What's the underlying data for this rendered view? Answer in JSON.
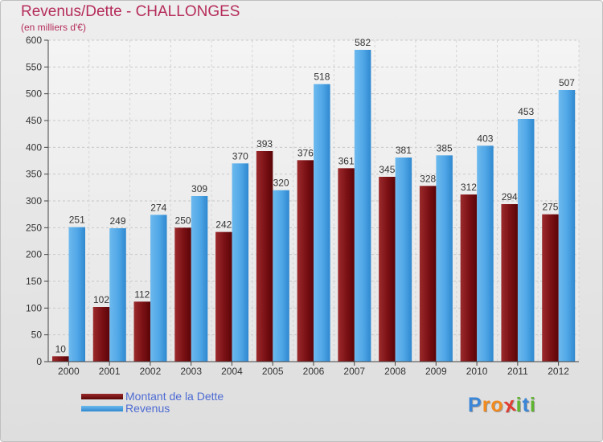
{
  "title": "Revenus/Dette - CHALLONGES",
  "subtitle": "(en milliers d'€)",
  "colors": {
    "debt": "#7a0f14",
    "revenue": "#4fa6e6",
    "title": "#b52d59",
    "legend_text": "#4d6bd3"
  },
  "chart_data": {
    "type": "bar",
    "title": "Revenus/Dette - CHALLONGES",
    "ylabel": "(en milliers d'€)",
    "xlabel": "",
    "ylim": [
      0,
      600
    ],
    "yticks": [
      0,
      50,
      100,
      150,
      200,
      250,
      300,
      350,
      400,
      450,
      500,
      550,
      600
    ],
    "grid": true,
    "legend_position": "bottom-left",
    "categories": [
      "2000",
      "2001",
      "2002",
      "2003",
      "2004",
      "2005",
      "2006",
      "2007",
      "2008",
      "2009",
      "2010",
      "2011",
      "2012"
    ],
    "series": [
      {
        "name": "Montant de la Dette",
        "color": "#7a0f14",
        "values": [
          10,
          102,
          112,
          250,
          242,
          393,
          376,
          361,
          345,
          328,
          312,
          294,
          275
        ]
      },
      {
        "name": "Revenus",
        "color": "#4fa6e6",
        "values": [
          251,
          249,
          274,
          309,
          370,
          320,
          518,
          582,
          381,
          385,
          403,
          453,
          507
        ]
      }
    ]
  },
  "legend": {
    "debt_label": "Montant de la Dette",
    "revenue_label": "Revenus"
  },
  "logo": {
    "letters": [
      "P",
      "r",
      "o",
      "x",
      "i",
      "t",
      "i"
    ],
    "colors": [
      "#3a86d8",
      "#f28a1e",
      "#f28a1e",
      "#e23b2f",
      "#5fb52f",
      "#3a86d8",
      "#5fb52f"
    ]
  }
}
